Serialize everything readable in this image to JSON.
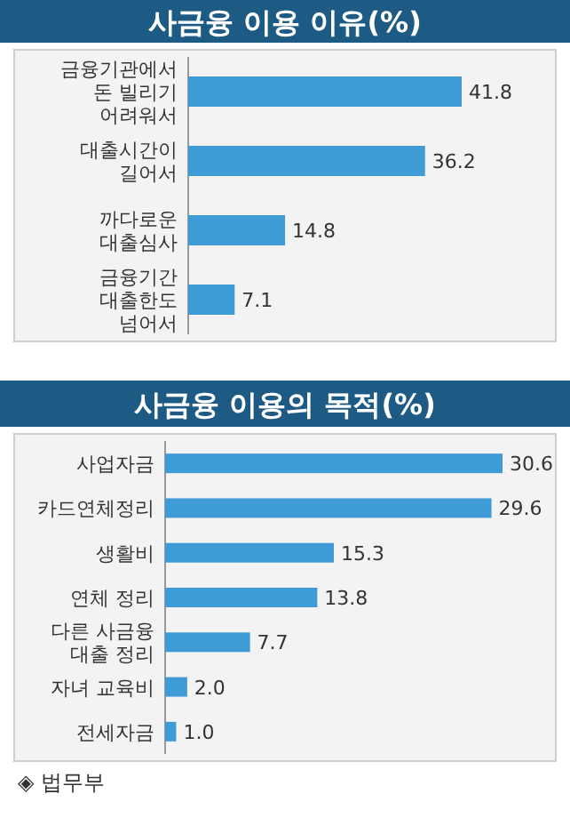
{
  "chart_data": [
    {
      "type": "bar",
      "orientation": "horizontal",
      "title": "사금융 이용 이유(%)",
      "categories": [
        "금융기관에서\n돈 빌리기\n어려워서",
        "대출시간이\n길어서",
        "까다로운\n대출심사",
        "금융기간\n대출한도\n넘어서"
      ],
      "values": [
        41.8,
        36.2,
        14.8,
        7.1
      ],
      "color": "#3f9bd5",
      "data_labels": true
    },
    {
      "type": "bar",
      "orientation": "horizontal",
      "title": "사금융 이용의 목적(%)",
      "categories": [
        "사업자금",
        "카드연체정리",
        "생활비",
        "연체 정리",
        "다른 사금융\n대출 정리",
        "자녀 교육비",
        "전세자금"
      ],
      "values": [
        30.6,
        29.6,
        15.3,
        13.8,
        7.7,
        2.0,
        1.0
      ],
      "color": "#3f9bd5",
      "value_labels": [
        "30.6",
        "29.6",
        "15.3",
        "13.8",
        "7.7",
        "2.0",
        "1.0"
      ],
      "annotations": [
        "◈ 법무부"
      ]
    }
  ]
}
